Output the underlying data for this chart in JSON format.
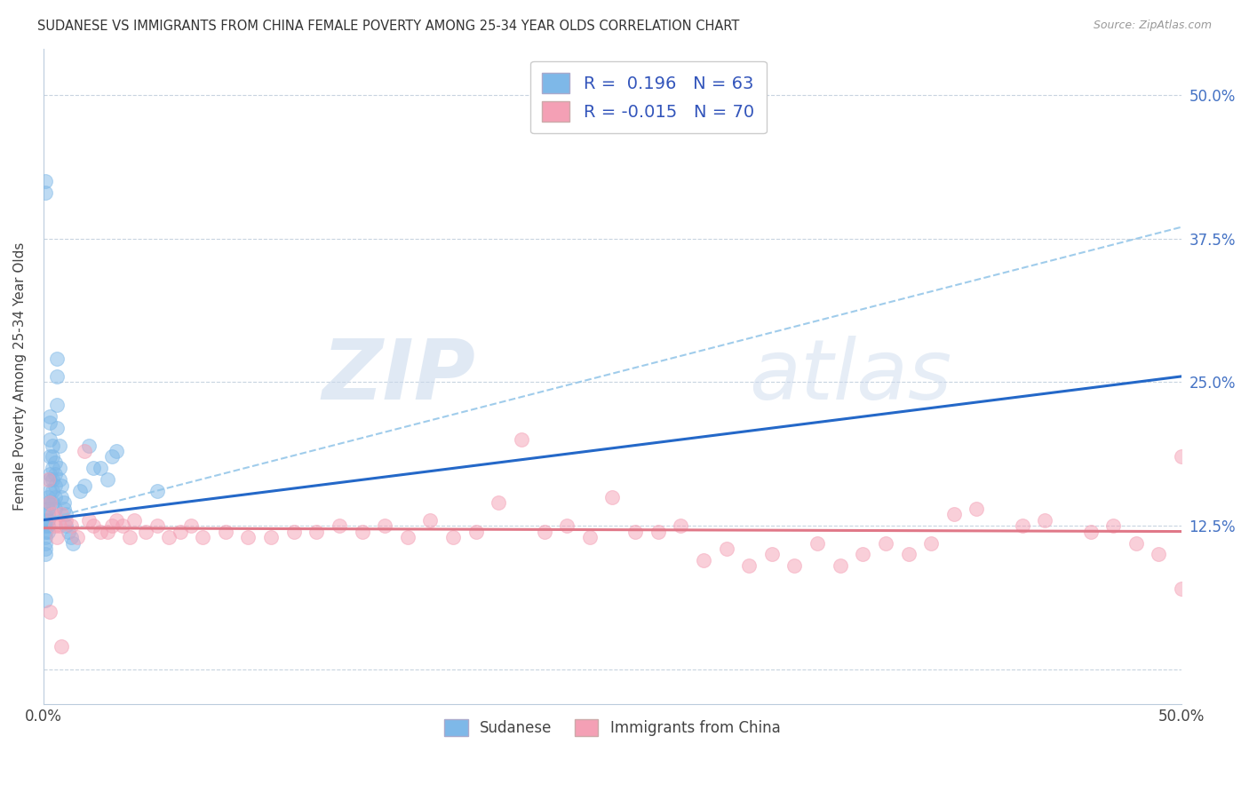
{
  "title": "SUDANESE VS IMMIGRANTS FROM CHINA FEMALE POVERTY AMONG 25-34 YEAR OLDS CORRELATION CHART",
  "source": "Source: ZipAtlas.com",
  "ylabel": "Female Poverty Among 25-34 Year Olds",
  "xlim": [
    0.0,
    0.5
  ],
  "ylim": [
    -0.03,
    0.54
  ],
  "ytick_values": [
    0.0,
    0.125,
    0.25,
    0.375,
    0.5
  ],
  "R_sudanese": 0.196,
  "N_sudanese": 63,
  "R_china": -0.015,
  "N_china": 70,
  "sudanese_color": "#7EB8E8",
  "china_color": "#F4A0B5",
  "trend_sudanese_color": "#2468C8",
  "trend_china_color": "#E07888",
  "trend_sudanese_dashed_color": "#90C4E8",
  "background_color": "#FFFFFF",
  "watermark_zip": "ZIP",
  "watermark_atlas": "atlas",
  "legend_label_1": "Sudanese",
  "legend_label_2": "Immigrants from China",
  "trend_s_x0": 0.0,
  "trend_s_y0": 0.13,
  "trend_s_x1": 0.5,
  "trend_s_y1": 0.255,
  "trend_s_dash_x0": 0.0,
  "trend_s_dash_y0": 0.13,
  "trend_s_dash_x1": 0.5,
  "trend_s_dash_y1": 0.385,
  "trend_c_x0": 0.0,
  "trend_c_y0": 0.123,
  "trend_c_x1": 0.5,
  "trend_c_y1": 0.12,
  "sudanese_x": [
    0.001,
    0.001,
    0.001,
    0.001,
    0.001,
    0.001,
    0.001,
    0.001,
    0.002,
    0.002,
    0.002,
    0.002,
    0.002,
    0.002,
    0.002,
    0.003,
    0.003,
    0.003,
    0.003,
    0.003,
    0.003,
    0.003,
    0.003,
    0.004,
    0.004,
    0.004,
    0.004,
    0.004,
    0.004,
    0.005,
    0.005,
    0.005,
    0.005,
    0.005,
    0.006,
    0.006,
    0.006,
    0.006,
    0.007,
    0.007,
    0.007,
    0.008,
    0.008,
    0.009,
    0.009,
    0.01,
    0.01,
    0.011,
    0.012,
    0.013,
    0.016,
    0.018,
    0.02,
    0.022,
    0.025,
    0.028,
    0.03,
    0.032,
    0.001,
    0.001,
    0.001,
    0.05
  ],
  "sudanese_y": [
    0.135,
    0.13,
    0.125,
    0.12,
    0.115,
    0.11,
    0.105,
    0.1,
    0.15,
    0.145,
    0.14,
    0.135,
    0.13,
    0.125,
    0.12,
    0.22,
    0.215,
    0.2,
    0.185,
    0.17,
    0.165,
    0.155,
    0.145,
    0.195,
    0.185,
    0.175,
    0.165,
    0.155,
    0.145,
    0.18,
    0.17,
    0.16,
    0.15,
    0.14,
    0.27,
    0.255,
    0.23,
    0.21,
    0.195,
    0.175,
    0.165,
    0.16,
    0.15,
    0.145,
    0.14,
    0.135,
    0.125,
    0.12,
    0.115,
    0.11,
    0.155,
    0.16,
    0.195,
    0.175,
    0.175,
    0.165,
    0.185,
    0.19,
    0.415,
    0.425,
    0.06,
    0.155
  ],
  "china_x": [
    0.002,
    0.003,
    0.004,
    0.005,
    0.006,
    0.007,
    0.008,
    0.01,
    0.012,
    0.015,
    0.018,
    0.02,
    0.022,
    0.025,
    0.028,
    0.03,
    0.032,
    0.035,
    0.038,
    0.04,
    0.045,
    0.05,
    0.055,
    0.06,
    0.065,
    0.07,
    0.08,
    0.09,
    0.1,
    0.11,
    0.12,
    0.13,
    0.14,
    0.15,
    0.16,
    0.17,
    0.18,
    0.19,
    0.2,
    0.21,
    0.22,
    0.23,
    0.24,
    0.25,
    0.26,
    0.27,
    0.28,
    0.29,
    0.3,
    0.31,
    0.32,
    0.33,
    0.34,
    0.35,
    0.36,
    0.37,
    0.38,
    0.39,
    0.4,
    0.41,
    0.43,
    0.44,
    0.46,
    0.47,
    0.48,
    0.49,
    0.5,
    0.003,
    0.008,
    0.5
  ],
  "china_y": [
    0.165,
    0.145,
    0.135,
    0.125,
    0.115,
    0.125,
    0.135,
    0.13,
    0.125,
    0.115,
    0.19,
    0.13,
    0.125,
    0.12,
    0.12,
    0.125,
    0.13,
    0.125,
    0.115,
    0.13,
    0.12,
    0.125,
    0.115,
    0.12,
    0.125,
    0.115,
    0.12,
    0.115,
    0.115,
    0.12,
    0.12,
    0.125,
    0.12,
    0.125,
    0.115,
    0.13,
    0.115,
    0.12,
    0.145,
    0.2,
    0.12,
    0.125,
    0.115,
    0.15,
    0.12,
    0.12,
    0.125,
    0.095,
    0.105,
    0.09,
    0.1,
    0.09,
    0.11,
    0.09,
    0.1,
    0.11,
    0.1,
    0.11,
    0.135,
    0.14,
    0.125,
    0.13,
    0.12,
    0.125,
    0.11,
    0.1,
    0.185,
    0.05,
    0.02,
    0.07
  ]
}
